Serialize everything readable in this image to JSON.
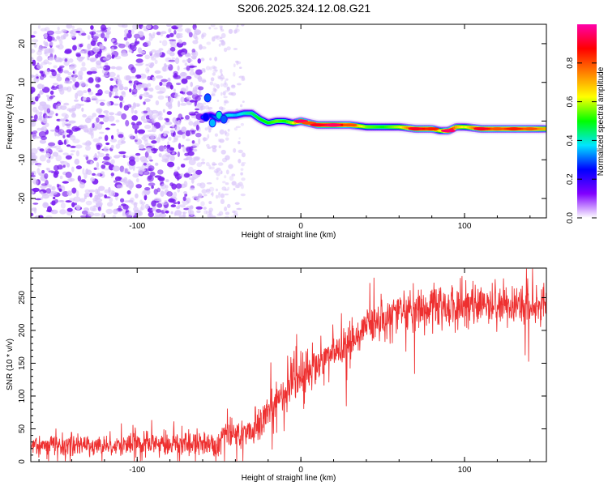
{
  "title": "S206.2025.324.12.08.G21",
  "colors": {
    "snr_line": "#ee3030",
    "scatter_dark": "#7b1ff0",
    "scatter_light": "#d9c4fa",
    "axis": "#000000"
  },
  "chart_data": [
    {
      "type": "heatmap",
      "xlabel": "Height of straight line (km)",
      "ylabel": "Frequency (Hz)",
      "xlim": [
        -165,
        150
      ],
      "ylim": [
        -25,
        25
      ],
      "xticks": [
        -100,
        0,
        100
      ],
      "yticks": [
        -20,
        -10,
        0,
        10,
        20
      ],
      "noise_region_x": [
        -165,
        -60
      ],
      "sparse_region_x": [
        -60,
        -35
      ],
      "signal_trace": {
        "x": [
          -60,
          -55,
          -50,
          -45,
          -40,
          -35,
          -30,
          -25,
          -20,
          -15,
          -10,
          -5,
          0,
          5,
          10,
          20,
          30,
          40,
          50,
          60,
          70,
          80,
          85,
          90,
          95,
          100,
          110,
          120,
          130,
          140,
          150
        ],
        "freq": [
          1,
          1.5,
          0.5,
          1.5,
          1.5,
          2,
          2,
          0.5,
          -0.5,
          0,
          0,
          -0.5,
          0,
          -0.5,
          -1,
          -1,
          -1,
          -1.5,
          -1.5,
          -1.5,
          -2,
          -2,
          -2.5,
          -2.5,
          -1.5,
          -1.5,
          -2,
          -2,
          -2,
          -2,
          -2
        ],
        "amplitude": [
          0.3,
          0.25,
          0.35,
          0.4,
          0.35,
          0.4,
          0.45,
          0.5,
          0.5,
          0.55,
          0.5,
          0.6,
          0.95,
          0.8,
          0.9,
          0.95,
          0.8,
          0.55,
          0.5,
          0.6,
          0.9,
          0.85,
          0.6,
          0.95,
          0.7,
          0.6,
          0.9,
          0.8,
          0.85,
          0.8,
          0.7
        ]
      },
      "colorbar": {
        "label": "Normalized spectral amplitude",
        "range": [
          0,
          1
        ],
        "ticks": [
          "0.0",
          "0.2",
          "0.4",
          "0.6",
          "0.8"
        ],
        "stops": [
          "#ffffff",
          "#8000ff",
          "#0000ff",
          "#00e5ff",
          "#00ff00",
          "#ffff00",
          "#ff8000",
          "#ff0000",
          "#ff00aa"
        ]
      }
    },
    {
      "type": "line",
      "xlabel": "Height of straight line (km)",
      "ylabel": "SNR (10 * v/v)",
      "xlim": [
        -165,
        150
      ],
      "ylim": [
        0,
        295
      ],
      "xticks": [
        -100,
        0,
        100
      ],
      "yticks": [
        0,
        50,
        100,
        150,
        200,
        250
      ],
      "series": [
        {
          "name": "SNR",
          "x": [
            -165,
            -140,
            -120,
            -100,
            -80,
            -60,
            -50,
            -45,
            -40,
            -30,
            -20,
            -10,
            0,
            10,
            20,
            30,
            40,
            45,
            50,
            60,
            70,
            80,
            90,
            100,
            110,
            120,
            130,
            140,
            150
          ],
          "mean": [
            25,
            25,
            25,
            26,
            27,
            28,
            30,
            55,
            40,
            45,
            75,
            105,
            130,
            150,
            165,
            180,
            205,
            215,
            220,
            228,
            230,
            232,
            235,
            238,
            240,
            240,
            240,
            238,
            240
          ],
          "spread": [
            15,
            15,
            15,
            15,
            16,
            18,
            20,
            30,
            22,
            25,
            30,
            32,
            30,
            30,
            30,
            30,
            28,
            28,
            28,
            30,
            30,
            32,
            32,
            32,
            32,
            30,
            30,
            30,
            28
          ]
        }
      ]
    }
  ]
}
